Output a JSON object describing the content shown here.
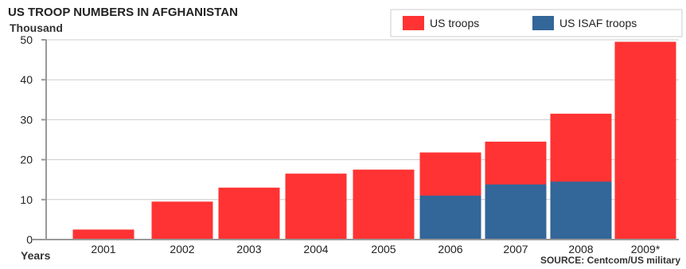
{
  "chart_data": {
    "type": "bar",
    "title": "US TROOP NUMBERS IN AFGHANISTAN",
    "ylabel": "Thousand",
    "xlabel": "Years",
    "source": "SOURCE: Centcom/US military",
    "categories": [
      "2001",
      "2002",
      "2003",
      "2004",
      "2005",
      "2006",
      "2007",
      "2008",
      "2009*"
    ],
    "series": [
      {
        "name": "US troops",
        "color": "#ff3333",
        "values": [
          2.5,
          9.5,
          13,
          16.5,
          17.5,
          21.8,
          24.5,
          31.5,
          49.5
        ]
      },
      {
        "name": "US ISAF troops",
        "color": "#336699",
        "values": [
          0,
          0,
          0,
          0,
          0,
          11,
          13.8,
          14.5,
          0
        ]
      }
    ],
    "series_note": "US ISAF troops shown as a portion overlaid at the base of the US troops bar",
    "ylim": [
      0,
      50
    ],
    "yticks": [
      "0",
      "10",
      "20",
      "30",
      "40",
      "50"
    ],
    "grid": true,
    "legend_position": "top-right"
  }
}
